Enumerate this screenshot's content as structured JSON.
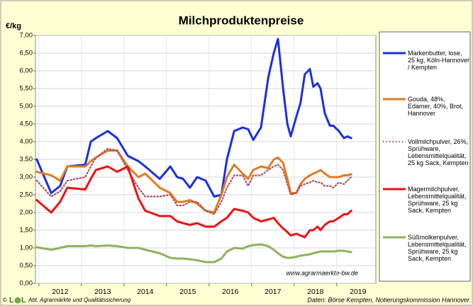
{
  "chart_data": {
    "type": "line",
    "title": "Milchproduktenpreise",
    "y_label": "€/kg",
    "annotation": "www.agrarmaerkte-bw.de",
    "source": "Daten: Börse Kempten, Notierungskommission Hannover",
    "copyright": "©",
    "logo": [
      "L",
      "L"
    ],
    "department": "Abt. Agrarmärkte und Qualitätssicherung",
    "x": [
      2011.95,
      2012.29,
      2012.5,
      2012.67,
      2013.09,
      2013.22,
      2013.34,
      2013.62,
      2013.84,
      2014.09,
      2014.34,
      2014.5,
      2014.84,
      2015.09,
      2015.25,
      2015.39,
      2015.55,
      2015.72,
      2015.92,
      2016.12,
      2016.29,
      2016.42,
      2016.59,
      2016.79,
      2016.92,
      2017.04,
      2017.22,
      2017.39,
      2017.52,
      2017.62,
      2017.74,
      2017.84,
      2017.92,
      2018.05,
      2018.15,
      2018.25,
      2018.37,
      2018.45,
      2018.55,
      2018.62,
      2018.72,
      2018.84,
      2018.92,
      2019.05,
      2019.17,
      2019.25,
      2019.34
    ],
    "series": [
      {
        "name": "Markenbutter, lose, 25 kg, Köln-Hannover / Kempten",
        "color": "#1a2fe0",
        "line_style": "solid",
        "values": [
          3.5,
          2.55,
          2.75,
          3.3,
          3.35,
          4.0,
          4.1,
          4.3,
          4.1,
          3.6,
          3.45,
          3.3,
          2.95,
          3.3,
          3.0,
          2.95,
          2.7,
          3.0,
          2.9,
          2.45,
          2.5,
          3.5,
          4.3,
          4.4,
          4.35,
          4.05,
          4.4,
          5.8,
          6.5,
          6.9,
          5.5,
          4.5,
          4.15,
          4.7,
          5.1,
          5.9,
          6.05,
          5.55,
          5.65,
          5.5,
          4.8,
          4.45,
          4.45,
          4.3,
          4.1,
          4.15,
          4.1
        ]
      },
      {
        "name": "Gouda, 48%, Edamer, 40%, Brot, Hannover",
        "color": "#e07b22",
        "line_style": "solid",
        "values": [
          3.15,
          3.05,
          2.9,
          3.3,
          3.3,
          3.45,
          3.55,
          3.75,
          3.75,
          3.3,
          3.0,
          3.1,
          2.7,
          2.55,
          2.3,
          2.3,
          2.35,
          2.25,
          2.05,
          2.0,
          2.5,
          3.0,
          3.35,
          3.1,
          2.95,
          3.2,
          3.3,
          3.25,
          3.5,
          3.55,
          3.4,
          2.95,
          2.55,
          2.55,
          2.8,
          2.95,
          3.05,
          3.1,
          3.15,
          3.2,
          3.1,
          3.0,
          3.0,
          3.0,
          3.05,
          3.05,
          3.08
        ]
      },
      {
        "name": "Vollmilchpulver, 26%, Sprühware, Lebensmittelqualität, 25 kg Sack, Kempten",
        "color": "#b0505e",
        "line_style": "dotted",
        "values": [
          2.9,
          2.45,
          2.6,
          2.9,
          3.0,
          3.3,
          3.55,
          3.8,
          3.75,
          3.2,
          2.7,
          2.45,
          2.45,
          2.5,
          2.2,
          2.2,
          2.3,
          2.3,
          2.05,
          1.95,
          2.3,
          2.7,
          3.05,
          3.05,
          2.75,
          3.05,
          3.05,
          3.2,
          3.3,
          3.35,
          3.2,
          2.8,
          2.5,
          2.55,
          2.75,
          2.8,
          2.85,
          2.9,
          2.85,
          2.85,
          2.75,
          2.75,
          2.7,
          2.85,
          2.8,
          2.9,
          3.0
        ]
      },
      {
        "name": "Magermilchpulver, Lebensmittelqualität, Sprühware, 25 kg Sack, Kempten",
        "color": "#ee1111",
        "line_style": "solid",
        "values": [
          2.35,
          2.0,
          2.3,
          2.7,
          2.65,
          2.95,
          3.2,
          3.3,
          3.15,
          3.3,
          2.4,
          2.05,
          1.9,
          1.9,
          1.75,
          1.7,
          1.65,
          1.7,
          1.6,
          1.6,
          1.75,
          1.85,
          2.1,
          2.05,
          2.0,
          1.85,
          1.75,
          1.8,
          1.85,
          1.7,
          1.55,
          1.45,
          1.35,
          1.4,
          1.35,
          1.3,
          1.5,
          1.5,
          1.6,
          1.5,
          1.65,
          1.75,
          1.75,
          1.85,
          1.95,
          1.95,
          2.05
        ]
      },
      {
        "name": "Süßmolkenpulver, Lebensmittelqualität, Sprühware, 25 kg Sack, Kempten",
        "color": "#8db35b",
        "line_style": "solid",
        "values": [
          1.02,
          0.95,
          1.0,
          1.05,
          1.05,
          1.07,
          1.05,
          1.07,
          1.05,
          1.0,
          1.0,
          0.95,
          0.85,
          0.72,
          0.7,
          0.7,
          0.68,
          0.65,
          0.6,
          0.6,
          0.7,
          0.9,
          1.0,
          0.98,
          1.05,
          1.08,
          1.1,
          1.05,
          0.95,
          0.85,
          0.75,
          0.72,
          0.72,
          0.75,
          0.78,
          0.8,
          0.82,
          0.85,
          0.88,
          0.9,
          0.9,
          0.9,
          0.9,
          0.92,
          0.92,
          0.9,
          0.88
        ]
      }
    ],
    "xlim": [
      2011.92,
      2019.92
    ],
    "xticks": [
      2012,
      2013,
      2014,
      2015,
      2016,
      2017,
      2018,
      2019
    ],
    "ylim": [
      0,
      7
    ],
    "yticks": [
      {
        "value": 0,
        "label": "0,00"
      },
      {
        "value": 0.5,
        "label": "0,50"
      },
      {
        "value": 1,
        "label": "1,00"
      },
      {
        "value": 1.5,
        "label": "1,50"
      },
      {
        "value": 2,
        "label": "2,00"
      },
      {
        "value": 2.5,
        "label": "2,50"
      },
      {
        "value": 3,
        "label": "3,00"
      },
      {
        "value": 3.5,
        "label": "3,50"
      },
      {
        "value": 4,
        "label": "4,00"
      },
      {
        "value": 4.5,
        "label": "4,50"
      },
      {
        "value": 5,
        "label": "5,00"
      },
      {
        "value": 5.5,
        "label": "5,50"
      },
      {
        "value": 6,
        "label": "6,00"
      },
      {
        "value": 6.5,
        "label": "6,50"
      },
      {
        "value": 7,
        "label": "7,00"
      }
    ],
    "grid": true,
    "legend": "right"
  }
}
